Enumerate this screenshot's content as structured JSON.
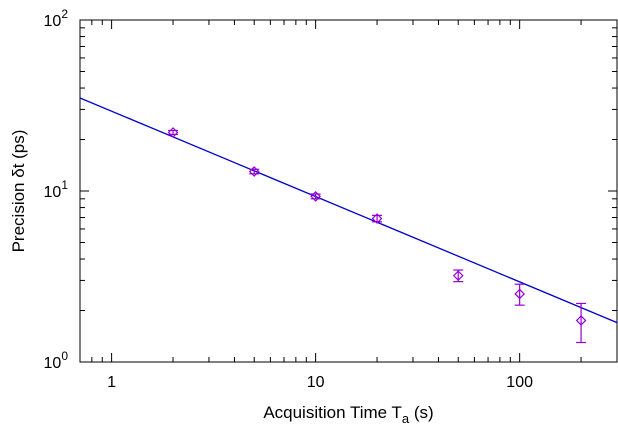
{
  "chart_data": {
    "type": "scatter",
    "xlabel": "Acquisition Time T",
    "xlabel_sub": "a",
    "xlabel_unit": " (s)",
    "ylabel": "Precision δt (ps)",
    "x_scale": "log",
    "y_scale": "log",
    "xlim": [
      0.7,
      300
    ],
    "ylim": [
      1,
      100
    ],
    "grid": false,
    "x_ticks": [
      {
        "value": 1,
        "label": "1"
      },
      {
        "value": 10,
        "label": "10"
      },
      {
        "value": 100,
        "label": "100"
      }
    ],
    "y_ticks": [
      {
        "value": 1,
        "base": "10",
        "exp": "0"
      },
      {
        "value": 10,
        "base": "10",
        "exp": "1"
      },
      {
        "value": 100,
        "base": "10",
        "exp": "2"
      }
    ],
    "series": [
      {
        "kind": "points-with-error",
        "color": "#9400d3",
        "marker": "diamond",
        "points": [
          {
            "x": 2,
            "y": 22,
            "err": 0.6
          },
          {
            "x": 5,
            "y": 13,
            "err": 0.4
          },
          {
            "x": 10,
            "y": 9.3,
            "err": 0.3
          },
          {
            "x": 20,
            "y": 6.9,
            "err": 0.3
          },
          {
            "x": 50,
            "y": 3.2,
            "err": 0.25
          },
          {
            "x": 100,
            "y": 2.5,
            "err": 0.35
          },
          {
            "x": 200,
            "y": 1.75,
            "err": 0.45
          }
        ]
      },
      {
        "kind": "fit-line",
        "color": "#0000cc",
        "x": [
          0.7,
          300
        ],
        "y": [
          35,
          1.7
        ]
      }
    ]
  }
}
